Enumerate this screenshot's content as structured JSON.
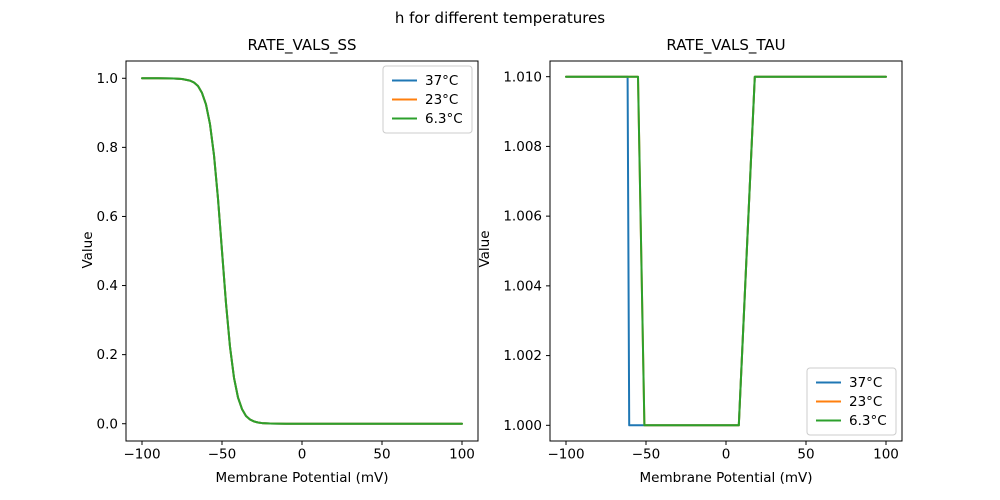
{
  "figure": {
    "suptitle": "h for different temperatures",
    "background": "#ffffff",
    "axis_color": "#000000",
    "legend_border_color": "#cccccc"
  },
  "chart_data": [
    {
      "type": "line",
      "title": "RATE_VALS_SS",
      "xlabel": "Membrane Potential (mV)",
      "ylabel": "Value",
      "xlim": [
        -110,
        110
      ],
      "ylim": [
        -0.05,
        1.05
      ],
      "grid": false,
      "xticks": {
        "values": [
          -100,
          -50,
          0,
          50,
          100
        ],
        "labels": [
          "−100",
          "−50",
          "0",
          "50",
          "100"
        ]
      },
      "yticks": {
        "values": [
          0.0,
          0.2,
          0.4,
          0.6,
          0.8,
          1.0
        ],
        "labels": [
          "0.0",
          "0.2",
          "0.4",
          "0.6",
          "0.8",
          "1.0"
        ]
      },
      "legend": {
        "loc": "upper-right",
        "entries": [
          "37°C",
          "23°C",
          "6.3°C"
        ]
      },
      "x": [
        -100,
        -90,
        -80,
        -75,
        -70,
        -67.5,
        -65,
        -62.5,
        -60,
        -57.5,
        -55,
        -52.5,
        -50,
        -47.5,
        -45,
        -42.5,
        -40,
        -37.5,
        -35,
        -32.5,
        -30,
        -27.5,
        -25,
        -20,
        -15,
        -10,
        0,
        10,
        25,
        50,
        75,
        100
      ],
      "series": [
        {
          "name": "37°C",
          "color": "#1f77b4",
          "y": [
            1.0,
            1.0,
            0.9995,
            0.998,
            0.9933,
            0.9877,
            0.9777,
            0.9577,
            0.9241,
            0.867,
            0.7773,
            0.6514,
            0.5,
            0.3486,
            0.2227,
            0.133,
            0.0759,
            0.0423,
            0.0223,
            0.0123,
            0.0066,
            0.0036,
            0.0019,
            0.0006,
            0.0002,
            0.0,
            0.0,
            0.0,
            0.0,
            0.0,
            0.0,
            0.0
          ]
        },
        {
          "name": "23°C",
          "color": "#ff7f0e",
          "y": [
            1.0,
            1.0,
            0.9995,
            0.998,
            0.9933,
            0.9877,
            0.9777,
            0.9577,
            0.9241,
            0.867,
            0.7773,
            0.6514,
            0.5,
            0.3486,
            0.2227,
            0.133,
            0.0759,
            0.0423,
            0.0223,
            0.0123,
            0.0066,
            0.0036,
            0.0019,
            0.0006,
            0.0002,
            0.0,
            0.0,
            0.0,
            0.0,
            0.0,
            0.0,
            0.0
          ]
        },
        {
          "name": "6.3°C",
          "color": "#2ca02c",
          "y": [
            1.0,
            1.0,
            0.9995,
            0.998,
            0.9933,
            0.9877,
            0.9777,
            0.9577,
            0.9241,
            0.867,
            0.7773,
            0.6514,
            0.5,
            0.3486,
            0.2227,
            0.133,
            0.0759,
            0.0423,
            0.0223,
            0.0123,
            0.0066,
            0.0036,
            0.0019,
            0.0006,
            0.0002,
            0.0,
            0.0,
            0.0,
            0.0,
            0.0,
            0.0,
            0.0
          ]
        }
      ]
    },
    {
      "type": "line",
      "title": "RATE_VALS_TAU",
      "xlabel": "Membrane Potential (mV)",
      "ylabel": "Value",
      "xlim": [
        -110,
        110
      ],
      "ylim": [
        0.99955,
        1.01045
      ],
      "grid": false,
      "xticks": {
        "values": [
          -100,
          -50,
          0,
          50,
          100
        ],
        "labels": [
          "−100",
          "−50",
          "0",
          "50",
          "100"
        ]
      },
      "yticks": {
        "values": [
          1.0,
          1.002,
          1.004,
          1.006,
          1.008,
          1.01
        ],
        "labels": [
          "1.000",
          "1.002",
          "1.004",
          "1.006",
          "1.008",
          "1.010"
        ]
      },
      "legend": {
        "loc": "lower-right",
        "entries": [
          "37°C",
          "23°C",
          "6.3°C"
        ]
      },
      "series": [
        {
          "name": "37°C",
          "color": "#1f77b4",
          "x": [
            -100,
            -61.5,
            -60.5,
            8,
            18,
            100
          ],
          "y": [
            1.01,
            1.01,
            1.0,
            1.0,
            1.01,
            1.01
          ]
        },
        {
          "name": "23°C",
          "color": "#ff7f0e",
          "x": [
            -100,
            -55,
            -51,
            8,
            18,
            100
          ],
          "y": [
            1.01,
            1.01,
            1.0,
            1.0,
            1.01,
            1.01
          ]
        },
        {
          "name": "6.3°C",
          "color": "#2ca02c",
          "x": [
            -100,
            -55,
            -51,
            8,
            18,
            100
          ],
          "y": [
            1.01,
            1.01,
            1.0,
            1.0,
            1.01,
            1.01
          ]
        }
      ]
    }
  ]
}
